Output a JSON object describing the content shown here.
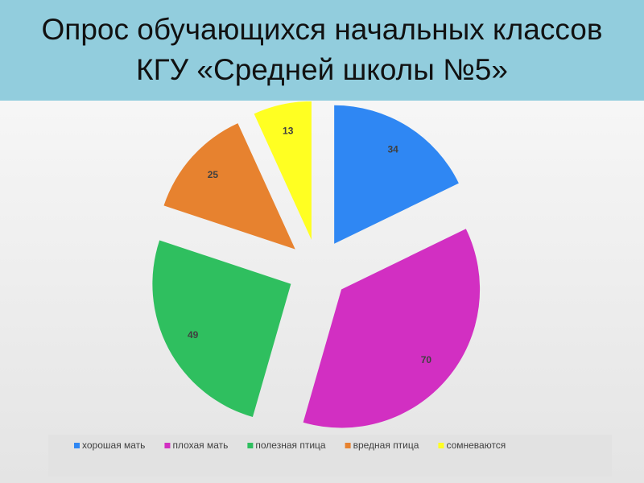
{
  "chart_data": {
    "type": "pie",
    "title": "Опрос обучающихся начальных классов КГУ «Средней школы №5»",
    "categories": [
      "хорошая мать",
      "плохая мать",
      "полезная птица",
      "вредная птица",
      "сомневаются"
    ],
    "values": [
      34,
      70,
      49,
      25,
      13
    ],
    "colors": [
      "#2f87f3",
      "#d22fc2",
      "#2fbf5f",
      "#e7822f",
      "#ffff22"
    ],
    "legend": "bottom"
  }
}
